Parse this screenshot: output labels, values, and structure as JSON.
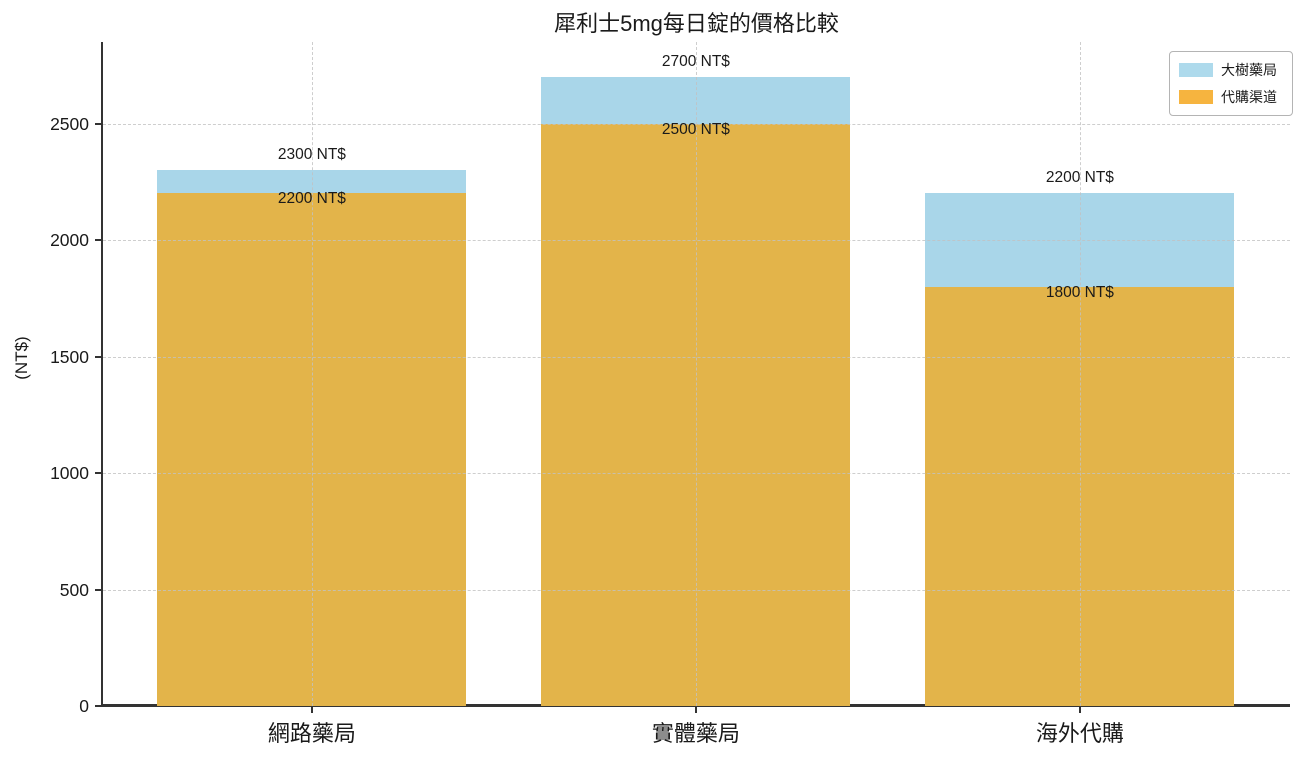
{
  "chart_data": {
    "type": "bar",
    "mode": "overlay",
    "title": "犀利士5mg每日錠的價格比較",
    "xlabel": "",
    "ylabel": "(NT$)",
    "categories": [
      "網路藥局",
      "實體藥局",
      "海外代購"
    ],
    "series": [
      {
        "name": "大樹藥局",
        "color": "#A9D6E9",
        "legend_color": "#AEDAEC",
        "values": [
          2300,
          2700,
          2200
        ],
        "labels": [
          "2300 NT$",
          "2700 NT$",
          "2200 NT$"
        ],
        "label_position": "above-bar"
      },
      {
        "name": "代購渠道",
        "color": "#E3B44A",
        "legend_color": "#F6B43F",
        "values": [
          2200,
          2500,
          1800
        ],
        "labels": [
          "2200 NT$",
          "2500 NT$",
          "1800 NT$"
        ],
        "label_position": "inside-top"
      }
    ],
    "yticks": [
      0,
      500,
      1000,
      1500,
      2000,
      2500
    ],
    "ylim": [
      0,
      2850
    ],
    "grid": "dashed-both-axes",
    "grid_color": "#c2c2c2",
    "spine_color": "#333333",
    "text_color": "#1a1a1a",
    "legend_position": "upper-right"
  }
}
